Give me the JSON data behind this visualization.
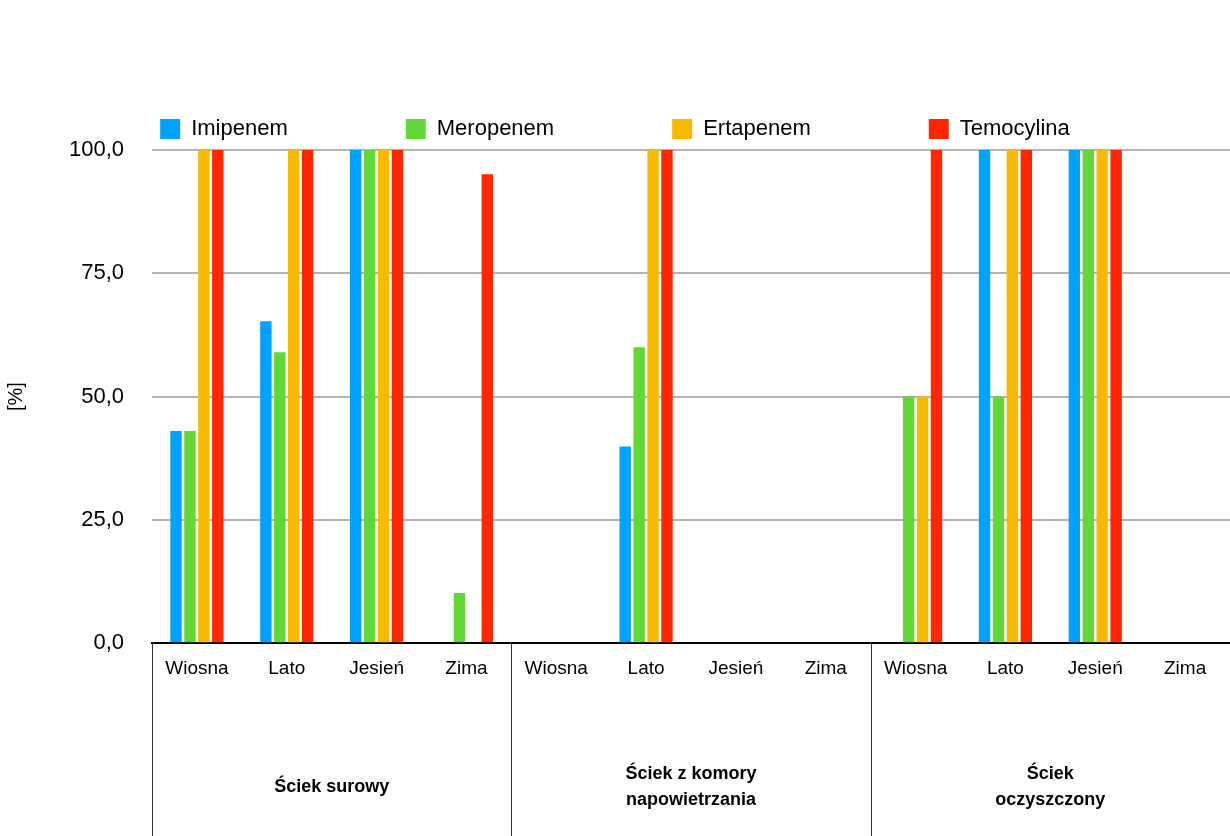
{
  "chart_data": {
    "type": "bar",
    "ylabel": "[%]",
    "categories": [
      "Wiosna",
      "Lato",
      "Jesień",
      "Zima",
      "Wiosna",
      "Lato",
      "Jesień",
      "Zima",
      "Wiosna",
      "Lato",
      "Jesień",
      "Zima"
    ],
    "series": [
      {
        "name": "Imipenem",
        "color": "#00a2ff",
        "values": [
          43,
          65.3,
          100,
          null,
          null,
          39.9,
          null,
          null,
          null,
          100,
          100,
          null
        ]
      },
      {
        "name": "Meropenem",
        "color": "#61d836",
        "values": [
          43,
          59,
          100,
          10.2,
          null,
          60,
          null,
          null,
          50,
          50,
          100,
          null
        ]
      },
      {
        "name": "Ertapenem",
        "color": "#f8ba00",
        "values": [
          100,
          100,
          100,
          null,
          null,
          100,
          null,
          null,
          50,
          100,
          100,
          null
        ]
      },
      {
        "name": "Temocylina",
        "color": "#ff2600",
        "values": [
          100,
          100,
          100,
          95.1,
          null,
          100,
          null,
          null,
          100,
          100,
          100,
          null
        ]
      }
    ],
    "ylim": [
      0,
      100
    ],
    "yticks": [
      {
        "value": 0,
        "label": "0,0"
      },
      {
        "value": 25,
        "label": "25,0"
      },
      {
        "value": 50,
        "label": "50,0"
      },
      {
        "value": 75,
        "label": "75,0"
      },
      {
        "value": 100,
        "label": "100,0"
      }
    ],
    "grid": "y",
    "legend": "top",
    "annotations": [
      "Ściek surowy",
      "Ściek z komory napowietrzania",
      "Ściek oczyszczony"
    ]
  }
}
